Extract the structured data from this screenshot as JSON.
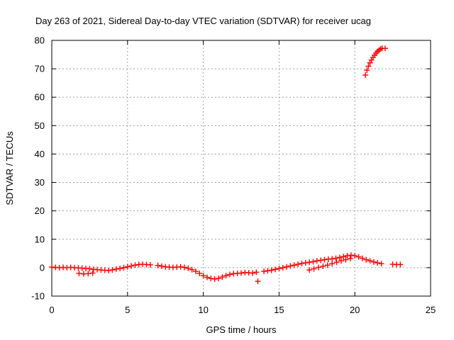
{
  "chart_data": {
    "type": "scatter",
    "title": "Day 263 of 2021, Sidereal Day-to-day VTEC variation (SDTVAR) for receiver ucag",
    "xlabel": "GPS time / hours",
    "ylabel": "SDTVAR / TECUs",
    "xlim": [
      0,
      25
    ],
    "ylim": [
      -10,
      80
    ],
    "xticks": [
      0,
      5,
      10,
      15,
      20,
      25
    ],
    "yticks": [
      -10,
      0,
      10,
      20,
      30,
      40,
      50,
      60,
      70,
      80
    ],
    "grid": true,
    "marker": "+",
    "color": "#ff0000",
    "series": [
      {
        "name": "SDTVAR",
        "points": [
          [
            0.0,
            0.2
          ],
          [
            0.25,
            0.1
          ],
          [
            0.5,
            0.0
          ],
          [
            0.75,
            0.1
          ],
          [
            1.0,
            0.0
          ],
          [
            1.25,
            0.1
          ],
          [
            1.5,
            0.0
          ],
          [
            1.75,
            -0.1
          ],
          [
            2.0,
            -0.2
          ],
          [
            2.25,
            -0.3
          ],
          [
            2.5,
            -0.4
          ],
          [
            2.75,
            -0.6
          ],
          [
            3.0,
            -0.7
          ],
          [
            3.25,
            -0.8
          ],
          [
            3.5,
            -0.9
          ],
          [
            3.75,
            -1.0
          ],
          [
            4.0,
            -0.8
          ],
          [
            4.25,
            -0.5
          ],
          [
            4.5,
            -0.3
          ],
          [
            4.75,
            0.0
          ],
          [
            5.0,
            0.3
          ],
          [
            5.25,
            0.6
          ],
          [
            5.5,
            0.9
          ],
          [
            5.75,
            1.1
          ],
          [
            6.0,
            1.2
          ],
          [
            6.25,
            1.1
          ],
          [
            6.5,
            1.0
          ],
          [
            7.0,
            0.8
          ],
          [
            7.25,
            0.5
          ],
          [
            7.5,
            0.3
          ],
          [
            7.75,
            0.2
          ],
          [
            8.0,
            0.1
          ],
          [
            8.25,
            0.2
          ],
          [
            8.5,
            0.3
          ],
          [
            8.75,
            0.1
          ],
          [
            9.0,
            -0.2
          ],
          [
            9.25,
            -0.7
          ],
          [
            9.5,
            -1.3
          ],
          [
            9.75,
            -2.0
          ],
          [
            10.0,
            -2.8
          ],
          [
            10.25,
            -3.4
          ],
          [
            10.5,
            -3.8
          ],
          [
            10.75,
            -4.0
          ],
          [
            11.0,
            -3.8
          ],
          [
            11.25,
            -3.3
          ],
          [
            11.5,
            -2.8
          ],
          [
            11.75,
            -2.4
          ],
          [
            12.0,
            -2.1
          ],
          [
            12.25,
            -2.0
          ],
          [
            12.5,
            -1.9
          ],
          [
            12.75,
            -1.7
          ],
          [
            13.0,
            -1.8
          ],
          [
            13.25,
            -1.9
          ],
          [
            13.5,
            -1.6
          ],
          [
            13.6,
            -4.8
          ],
          [
            14.0,
            -1.3
          ],
          [
            14.25,
            -1.1
          ],
          [
            14.5,
            -0.9
          ],
          [
            14.75,
            -0.6
          ],
          [
            15.0,
            -0.3
          ],
          [
            15.25,
            0.0
          ],
          [
            15.5,
            0.3
          ],
          [
            15.75,
            0.6
          ],
          [
            16.0,
            0.9
          ],
          [
            16.25,
            1.2
          ],
          [
            16.5,
            1.5
          ],
          [
            16.75,
            1.7
          ],
          [
            17.0,
            1.9
          ],
          [
            17.25,
            2.1
          ],
          [
            17.5,
            2.4
          ],
          [
            17.75,
            2.6
          ],
          [
            18.0,
            2.8
          ],
          [
            18.25,
            3.0
          ],
          [
            18.5,
            3.1
          ],
          [
            18.75,
            3.3
          ],
          [
            19.0,
            3.6
          ],
          [
            19.25,
            3.9
          ],
          [
            19.5,
            4.2
          ],
          [
            19.75,
            4.4
          ],
          [
            20.0,
            4.2
          ],
          [
            20.25,
            3.8
          ],
          [
            20.5,
            3.3
          ],
          [
            20.75,
            2.8
          ],
          [
            21.0,
            2.4
          ],
          [
            21.25,
            2.0
          ],
          [
            21.5,
            1.7
          ],
          [
            21.75,
            1.4
          ],
          [
            22.5,
            1.2
          ],
          [
            22.75,
            1.1
          ],
          [
            23.0,
            1.1
          ],
          [
            1.8,
            -2.0
          ],
          [
            2.1,
            -2.2
          ],
          [
            2.4,
            -2.1
          ],
          [
            2.7,
            -1.9
          ],
          [
            17.0,
            -0.8
          ],
          [
            17.3,
            -0.4
          ],
          [
            17.6,
            0.1
          ],
          [
            17.9,
            0.5
          ],
          [
            18.2,
            0.9
          ],
          [
            18.5,
            1.4
          ],
          [
            18.8,
            1.9
          ],
          [
            19.1,
            2.4
          ],
          [
            19.4,
            2.8
          ],
          [
            19.7,
            3.2
          ],
          [
            20.7,
            67.8
          ],
          [
            20.8,
            69.5
          ],
          [
            20.9,
            70.9
          ],
          [
            21.0,
            72.1
          ],
          [
            21.1,
            73.1
          ],
          [
            21.2,
            74.0
          ],
          [
            21.3,
            74.8
          ],
          [
            21.4,
            75.5
          ],
          [
            21.5,
            76.1
          ],
          [
            21.6,
            76.6
          ],
          [
            21.7,
            77.0
          ],
          [
            21.8,
            77.2
          ],
          [
            22.0,
            77.2
          ]
        ]
      }
    ]
  }
}
